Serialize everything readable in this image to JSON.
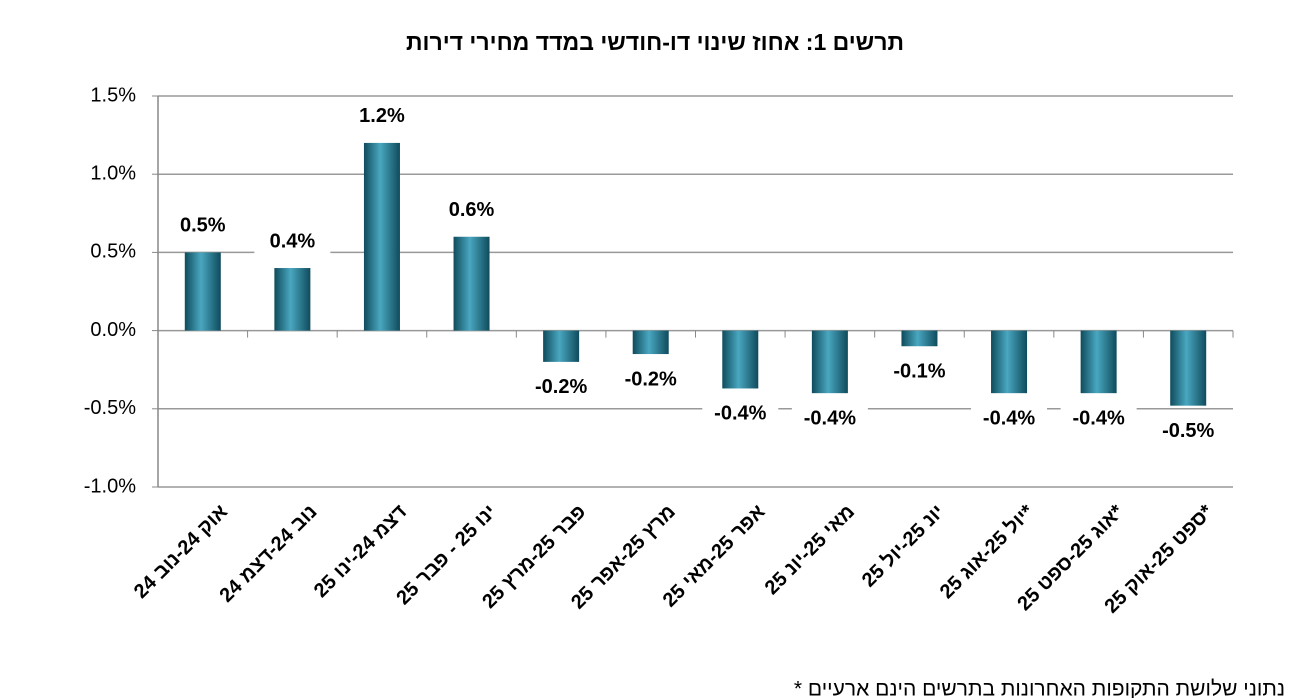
{
  "chart_data": {
    "type": "bar",
    "title": "תרשים 1: אחוז שינוי דו-חודשי במדד מחירי דירות",
    "categories": [
      "אוק 24-נוב 24",
      "נוב 24-דצמ 24",
      "דצמ 24-ינו 25",
      "ינו 25 - פבר 25",
      "פבר 25-מרץ 25",
      "מרץ 25-אפר 25",
      "אפר 25-מאי 25",
      "מאי 25-יונ 25",
      "יונ 25-יול 25",
      "יול 25-אוג 25*",
      "אוג 25-ספט 25*",
      "ספט 25-אוק 25*"
    ],
    "values": [
      0.5,
      0.4,
      1.2,
      0.6,
      -0.2,
      -0.15,
      -0.37,
      -0.4,
      -0.1,
      -0.4,
      -0.4,
      -0.48
    ],
    "value_labels": [
      "0.5%",
      "0.4%",
      "1.2%",
      "0.6%",
      "-0.2%",
      "-0.2%",
      "-0.4%",
      "-0.4%",
      "-0.1%",
      "-0.4%",
      "-0.4%",
      "-0.5%"
    ],
    "color": "#2e8299",
    "ylim": [
      -1.0,
      1.5
    ],
    "yticks": [
      {
        "value": -1.0,
        "label": "-1.0%"
      },
      {
        "value": -0.5,
        "label": "-0.5%"
      },
      {
        "value": 0,
        "label": "0.0%"
      },
      {
        "value": 0.5,
        "label": "0.5%"
      },
      {
        "value": 1.0,
        "label": "1.0%"
      },
      {
        "value": 1.5,
        "label": "1.5%"
      }
    ],
    "grid": true,
    "footnote": "* נתוני שלושת התקופות האחרונות בתרשים הינם ארעיים"
  }
}
